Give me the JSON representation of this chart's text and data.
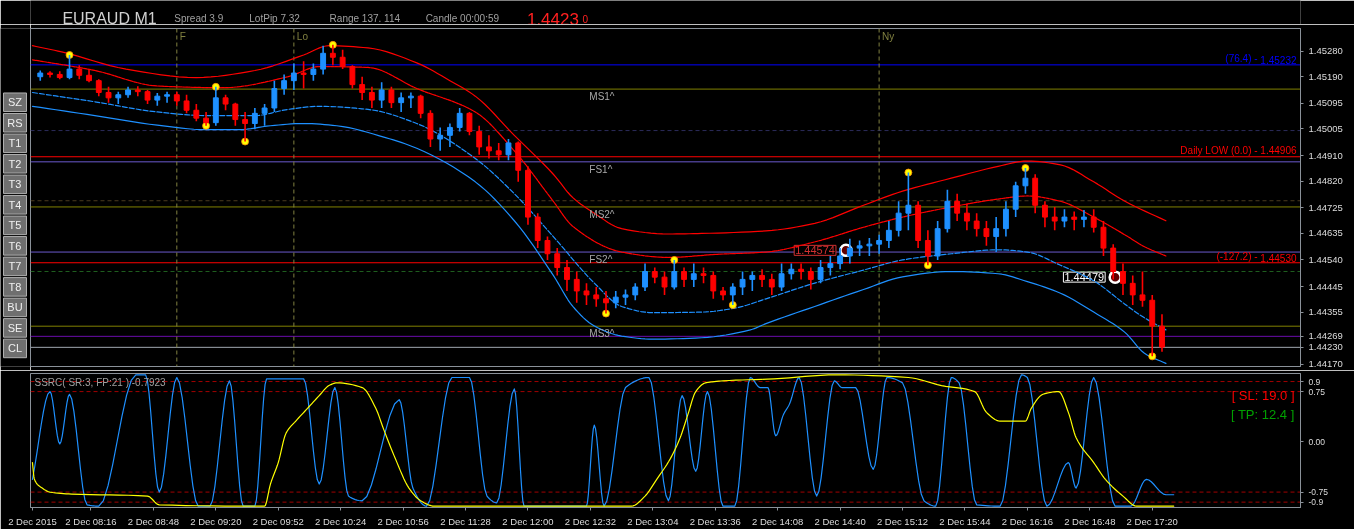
{
  "chart_data": [
    {
      "type": "candlestick",
      "title": "EURAUD M1",
      "tick_labels": "y",
      "annotations": [
        "Spread 3.9",
        "LotPip 7.32",
        "Range 137. 114",
        "Candle 00:00:59",
        "1.4423",
        "0",
        {
          "text": "1.44574",
          "x": "2015-12-02T14:43",
          "y": 1.44574
        },
        {
          "text": "1.44479",
          "x": "2015-12-02T17:01",
          "y": 1.44479
        },
        {
          "text": "(76.4) -",
          "x": "2015-12-02T18:14",
          "y": 1.45232
        },
        {
          "text": "(-127.2) -",
          "x": "2015-12-02T18:14",
          "y": 1.4453
        }
      ],
      "xlim": [
        "2015-12-02T07:45",
        "2015-12-02T18:36"
      ],
      "ylim": [
        1.44162,
        1.45361
      ],
      "yticks": [
        {
          "value": 1.4528,
          "label": "1.45280"
        },
        {
          "value": 1.4519,
          "label": "1.45190"
        },
        1.45095,
        1.45005,
        {
          "value": 1.4491,
          "label": "1.44910"
        },
        {
          "value": 1.4482,
          "label": "1.44820"
        },
        1.44725,
        1.44635,
        {
          "value": 1.4454,
          "label": "1.44540"
        },
        1.44445,
        1.44355,
        1.44269,
        {
          "value": 1.4423,
          "label": "1.44230"
        },
        {
          "value": 1.4417,
          "label": "1.44170"
        }
      ],
      "x": [
        "2015-12-02T07:50",
        "2015-12-02T07:55",
        "2015-12-02T08:00",
        "2015-12-02T08:05",
        "2015-12-02T08:10",
        "2015-12-02T08:15",
        "2015-12-02T08:20",
        "2015-12-02T08:25",
        "2015-12-02T08:30",
        "2015-12-02T08:35",
        "2015-12-02T08:40",
        "2015-12-02T08:45",
        "2015-12-02T08:50",
        "2015-12-02T08:55",
        "2015-12-02T09:00",
        "2015-12-02T09:05",
        "2015-12-02T09:10",
        "2015-12-02T09:15",
        "2015-12-02T09:20",
        "2015-12-02T09:25",
        "2015-12-02T09:30",
        "2015-12-02T09:35",
        "2015-12-02T09:40",
        "2015-12-02T09:45",
        "2015-12-02T09:50",
        "2015-12-02T09:55",
        "2015-12-02T10:00",
        "2015-12-02T10:05",
        "2015-12-02T10:10",
        "2015-12-02T10:15",
        "2015-12-02T10:20",
        "2015-12-02T10:25",
        "2015-12-02T10:30",
        "2015-12-02T10:35",
        "2015-12-02T10:40",
        "2015-12-02T10:45",
        "2015-12-02T10:50",
        "2015-12-02T10:55",
        "2015-12-02T11:00",
        "2015-12-02T11:05",
        "2015-12-02T11:10",
        "2015-12-02T11:15",
        "2015-12-02T11:20",
        "2015-12-02T11:25",
        "2015-12-02T11:30",
        "2015-12-02T11:35",
        "2015-12-02T11:40",
        "2015-12-02T11:45",
        "2015-12-02T11:50",
        "2015-12-02T11:55",
        "2015-12-02T12:00",
        "2015-12-02T12:05",
        "2015-12-02T12:10",
        "2015-12-02T12:15",
        "2015-12-02T12:20",
        "2015-12-02T12:25",
        "2015-12-02T12:30",
        "2015-12-02T12:35",
        "2015-12-02T12:40",
        "2015-12-02T12:45",
        "2015-12-02T12:50",
        "2015-12-02T12:55",
        "2015-12-02T13:00",
        "2015-12-02T13:05",
        "2015-12-02T13:10",
        "2015-12-02T13:15",
        "2015-12-02T13:20",
        "2015-12-02T13:25",
        "2015-12-02T13:30",
        "2015-12-02T13:35",
        "2015-12-02T13:40",
        "2015-12-02T13:45",
        "2015-12-02T13:50",
        "2015-12-02T13:55",
        "2015-12-02T14:00",
        "2015-12-02T14:05",
        "2015-12-02T14:10",
        "2015-12-02T14:15",
        "2015-12-02T14:20",
        "2015-12-02T14:25",
        "2015-12-02T14:30",
        "2015-12-02T14:35",
        "2015-12-02T14:40",
        "2015-12-02T14:45",
        "2015-12-02T14:50",
        "2015-12-02T14:55",
        "2015-12-02T15:00",
        "2015-12-02T15:05",
        "2015-12-02T15:10",
        "2015-12-02T15:15",
        "2015-12-02T15:20",
        "2015-12-02T15:25",
        "2015-12-02T15:30",
        "2015-12-02T15:35",
        "2015-12-02T15:40",
        "2015-12-02T15:45",
        "2015-12-02T15:50",
        "2015-12-02T15:55",
        "2015-12-02T16:00",
        "2015-12-02T16:05",
        "2015-12-02T16:10",
        "2015-12-02T16:15",
        "2015-12-02T16:20",
        "2015-12-02T16:25",
        "2015-12-02T16:30",
        "2015-12-02T16:35",
        "2015-12-02T16:40",
        "2015-12-02T16:45",
        "2015-12-02T16:50",
        "2015-12-02T16:55",
        "2015-12-02T17:00",
        "2015-12-02T17:05",
        "2015-12-02T17:10",
        "2015-12-02T17:15",
        "2015-12-02T17:20",
        "2015-12-02T17:25"
      ],
      "ohlc": [
        [
          1.4519,
          1.45212,
          1.45176,
          1.45203
        ],
        [
          1.45203,
          1.45209,
          1.45187,
          1.45198
        ],
        [
          1.45198,
          1.45209,
          1.45181,
          1.45187
        ],
        [
          1.45187,
          1.45267,
          1.45181,
          1.45217
        ],
        [
          1.45217,
          1.45231,
          1.45181,
          1.45195
        ],
        [
          1.45195,
          1.45215,
          1.4517,
          1.45176
        ],
        [
          1.45176,
          1.45181,
          1.45121,
          1.45134
        ],
        [
          1.45134,
          1.45154,
          1.45098,
          1.45115
        ],
        [
          1.45115,
          1.45137,
          1.45093,
          1.45126
        ],
        [
          1.45126,
          1.45154,
          1.45115,
          1.45143
        ],
        [
          1.45143,
          1.45156,
          1.45121,
          1.45137
        ],
        [
          1.45137,
          1.45143,
          1.45093,
          1.45107
        ],
        [
          1.45107,
          1.45132,
          1.45087,
          1.45121
        ],
        [
          1.45121,
          1.45137,
          1.45098,
          1.45126
        ],
        [
          1.45126,
          1.45137,
          1.45087,
          1.45104
        ],
        [
          1.45104,
          1.45126,
          1.4506,
          1.45071
        ],
        [
          1.45071,
          1.45093,
          1.45032,
          1.45043
        ],
        [
          1.45043,
          1.45065,
          1.45016,
          1.45027
        ],
        [
          1.45027,
          1.45154,
          1.45016,
          1.45115
        ],
        [
          1.45115,
          1.45126,
          1.45071,
          1.45093
        ],
        [
          1.45093,
          1.45098,
          1.45016,
          1.45038
        ],
        [
          1.45038,
          1.45065,
          1.4496,
          1.45024
        ],
        [
          1.45024,
          1.45079,
          1.45004,
          1.4506
        ],
        [
          1.4506,
          1.45093,
          1.45016,
          1.45079
        ],
        [
          1.45079,
          1.45176,
          1.45065,
          1.45148
        ],
        [
          1.45148,
          1.45198,
          1.45126,
          1.45176
        ],
        [
          1.45176,
          1.45237,
          1.45143,
          1.45203
        ],
        [
          1.45203,
          1.45245,
          1.45148,
          1.45198
        ],
        [
          1.45198,
          1.45237,
          1.45176,
          1.45217
        ],
        [
          1.45217,
          1.453,
          1.45198,
          1.45273
        ],
        [
          1.45273,
          1.45303,
          1.45231,
          1.45259
        ],
        [
          1.45259,
          1.45286,
          1.45217,
          1.45226
        ],
        [
          1.45226,
          1.45231,
          1.45148,
          1.45162
        ],
        [
          1.45162,
          1.4519,
          1.45107,
          1.45134
        ],
        [
          1.45134,
          1.45154,
          1.45079,
          1.45107
        ],
        [
          1.45107,
          1.4517,
          1.45079,
          1.45143
        ],
        [
          1.45143,
          1.45154,
          1.45079,
          1.45098
        ],
        [
          1.45098,
          1.45134,
          1.45065,
          1.45115
        ],
        [
          1.45115,
          1.45134,
          1.45079,
          1.45121
        ],
        [
          1.45121,
          1.45126,
          1.45043,
          1.4506
        ],
        [
          1.4506,
          1.45071,
          1.44941,
          1.44969
        ],
        [
          1.44969,
          1.4501,
          1.44927,
          1.44982
        ],
        [
          1.44982,
          1.45024,
          1.44941,
          1.4501
        ],
        [
          1.4501,
          1.45079,
          1.44996,
          1.4506
        ],
        [
          1.4506,
          1.45065,
          1.44982,
          1.44996
        ],
        [
          1.44996,
          1.45016,
          1.44913,
          1.44941
        ],
        [
          1.44941,
          1.44982,
          1.449,
          1.44927
        ],
        [
          1.44927,
          1.44955,
          1.44894,
          1.44913
        ],
        [
          1.44913,
          1.44969,
          1.44894,
          1.44955
        ],
        [
          1.44955,
          1.4496,
          1.44817,
          1.44858
        ],
        [
          1.44858,
          1.44872,
          1.44665,
          1.44692
        ],
        [
          1.44692,
          1.44706,
          1.44582,
          1.44609
        ],
        [
          1.44609,
          1.44623,
          1.4454,
          1.44562
        ],
        [
          1.44562,
          1.44582,
          1.44485,
          1.44513
        ],
        [
          1.44513,
          1.4454,
          1.4443,
          1.44471
        ],
        [
          1.44471,
          1.44499,
          1.44388,
          1.4443
        ],
        [
          1.4443,
          1.44457,
          1.4438,
          1.44416
        ],
        [
          1.44416,
          1.44444,
          1.44374,
          1.44402
        ],
        [
          1.44402,
          1.4443,
          1.4435,
          1.44388
        ],
        [
          1.44388,
          1.4443,
          1.44369,
          1.44408
        ],
        [
          1.44408,
          1.44435,
          1.4438,
          1.44416
        ],
        [
          1.44416,
          1.44457,
          1.44397,
          1.44444
        ],
        [
          1.44444,
          1.44527,
          1.4443,
          1.44499
        ],
        [
          1.44499,
          1.44513,
          1.44457,
          1.44479
        ],
        [
          1.44479,
          1.44499,
          1.44416,
          1.44444
        ],
        [
          1.44444,
          1.4454,
          1.44435,
          1.44499
        ],
        [
          1.44499,
          1.44513,
          1.44444,
          1.44471
        ],
        [
          1.44471,
          1.44527,
          1.44444,
          1.44491
        ],
        [
          1.44491,
          1.44513,
          1.44457,
          1.44485
        ],
        [
          1.44485,
          1.44499,
          1.44402,
          1.4443
        ],
        [
          1.4443,
          1.44444,
          1.44397,
          1.44416
        ],
        [
          1.44416,
          1.44457,
          1.4438,
          1.44444
        ],
        [
          1.44444,
          1.44499,
          1.44416,
          1.44471
        ],
        [
          1.44471,
          1.44499,
          1.4443,
          1.44485
        ],
        [
          1.44485,
          1.44507,
          1.44444,
          1.44471
        ],
        [
          1.44471,
          1.44491,
          1.44416,
          1.44444
        ],
        [
          1.44444,
          1.44527,
          1.4443,
          1.44491
        ],
        [
          1.44491,
          1.44527,
          1.44471,
          1.44507
        ],
        [
          1.44507,
          1.44527,
          1.44471,
          1.44499
        ],
        [
          1.44499,
          1.44513,
          1.44435,
          1.44471
        ],
        [
          1.44471,
          1.4454,
          1.44457,
          1.44513
        ],
        [
          1.44513,
          1.44554,
          1.44485,
          1.44527
        ],
        [
          1.44527,
          1.44582,
          1.44507,
          1.44554
        ],
        [
          1.44554,
          1.44615,
          1.44527,
          1.44582
        ],
        [
          1.44582,
          1.44609,
          1.44554,
          1.4459
        ],
        [
          1.4459,
          1.44618,
          1.44554,
          1.44596
        ],
        [
          1.44596,
          1.44629,
          1.44562,
          1.44609
        ],
        [
          1.44609,
          1.44678,
          1.44582,
          1.44645
        ],
        [
          1.44645,
          1.44748,
          1.44623,
          1.44706
        ],
        [
          1.44706,
          1.4485,
          1.44645,
          1.44734
        ],
        [
          1.44734,
          1.44748,
          1.44582,
          1.44609
        ],
        [
          1.44609,
          1.44645,
          1.44521,
          1.44554
        ],
        [
          1.44554,
          1.44678,
          1.4454,
          1.44651
        ],
        [
          1.44651,
          1.44789,
          1.44637,
          1.44748
        ],
        [
          1.44748,
          1.44775,
          1.44678,
          1.44706
        ],
        [
          1.44706,
          1.44739,
          1.44645,
          1.44678
        ],
        [
          1.44678,
          1.44706,
          1.44623,
          1.44651
        ],
        [
          1.44651,
          1.44678,
          1.4459,
          1.44623
        ],
        [
          1.44623,
          1.44692,
          1.44568,
          1.44651
        ],
        [
          1.44651,
          1.44748,
          1.44623,
          1.4472
        ],
        [
          1.4472,
          1.44817,
          1.44692,
          1.44803
        ],
        [
          1.44803,
          1.44866,
          1.44775,
          1.4483
        ],
        [
          1.4483,
          1.44844,
          1.44706,
          1.44734
        ],
        [
          1.44734,
          1.44748,
          1.44656,
          1.44692
        ],
        [
          1.44692,
          1.44728,
          1.44645,
          1.44678
        ],
        [
          1.44678,
          1.4472,
          1.44656,
          1.44692
        ],
        [
          1.44692,
          1.44712,
          1.44645,
          1.44684
        ],
        [
          1.44684,
          1.44717,
          1.44656,
          1.44692
        ],
        [
          1.44692,
          1.4472,
          1.44637,
          1.44656
        ],
        [
          1.44656,
          1.44678,
          1.44554,
          1.44582
        ],
        [
          1.44582,
          1.44596,
          1.44471,
          1.44499
        ],
        [
          1.44499,
          1.44527,
          1.44416,
          1.44457
        ],
        [
          1.44457,
          1.44485,
          1.4438,
          1.44416
        ],
        [
          1.44416,
          1.44499,
          1.44374,
          1.44397
        ],
        [
          1.44397,
          1.44416,
          1.44198,
          1.44305
        ],
        [
          1.44305,
          1.44347,
          1.44214,
          1.44231
        ]
      ],
      "colors": [
        "#1e90ff",
        "#ff0000",
        "#ff0000",
        "#1e90ff",
        "#ff0000",
        "#ff0000",
        "#ff0000",
        "#ff0000",
        "#1e90ff",
        "#1e90ff",
        "#ff0000",
        "#ff0000",
        "#1e90ff",
        "#1e90ff",
        "#ff0000",
        "#ff0000",
        "#ff0000",
        "#ff0000",
        "#1e90ff",
        "#ff0000",
        "#ff0000",
        "#ff0000",
        "#1e90ff",
        "#1e90ff",
        "#1e90ff",
        "#1e90ff",
        "#1e90ff",
        "#ff0000",
        "#1e90ff",
        "#1e90ff",
        "#ff0000",
        "#ff0000",
        "#ff0000",
        "#ff0000",
        "#ff0000",
        "#1e90ff",
        "#ff0000",
        "#1e90ff",
        "#1e90ff",
        "#ff0000",
        "#ff0000",
        "#1e90ff",
        "#1e90ff",
        "#1e90ff",
        "#ff0000",
        "#ff0000",
        "#ff0000",
        "#ff0000",
        "#1e90ff",
        "#ff0000",
        "#ff0000",
        "#ff0000",
        "#ff0000",
        "#ff0000",
        "#ff0000",
        "#ff0000",
        "#ff0000",
        "#ff0000",
        "#ff0000",
        "#1e90ff",
        "#1e90ff",
        "#1e90ff",
        "#1e90ff",
        "#ff0000",
        "#ff0000",
        "#1e90ff",
        "#ff0000",
        "#1e90ff",
        "#ff0000",
        "#ff0000",
        "#ff0000",
        "#1e90ff",
        "#1e90ff",
        "#1e90ff",
        "#ff0000",
        "#ff0000",
        "#1e90ff",
        "#1e90ff",
        "#ff0000",
        "#ff0000",
        "#1e90ff",
        "#1e90ff",
        "#1e90ff",
        "#1e90ff",
        "#1e90ff",
        "#1e90ff",
        "#1e90ff",
        "#1e90ff",
        "#1e90ff",
        "#1e90ff",
        "#ff0000",
        "#ff0000",
        "#1e90ff",
        "#1e90ff",
        "#ff0000",
        "#ff0000",
        "#ff0000",
        "#ff0000",
        "#1e90ff",
        "#1e90ff",
        "#1e90ff",
        "#1e90ff",
        "#ff0000",
        "#ff0000",
        "#ff0000",
        "#1e90ff",
        "#ff0000",
        "#1e90ff",
        "#ff0000",
        "#ff0000",
        "#ff0000",
        "#ff0000",
        "#ff0000",
        "#ff0000",
        "#ff0000",
        "#ff0000"
      ],
      "series": [
        {
          "type": "line",
          "color": "#ff0000",
          "x": [
            "2015-12-02T07:46",
            "2015-12-02T08:01",
            "2015-12-02T08:34",
            "2015-12-02T09:10",
            "2015-12-02T09:40",
            "2015-12-02T10:05",
            "2015-12-02T10:18",
            "2015-12-02T10:38",
            "2015-12-02T11:03",
            "2015-12-02T11:20",
            "2015-12-02T11:33",
            "2015-12-02T11:53",
            "2015-12-02T12:13",
            "2015-12-02T12:23",
            "2015-12-02T12:34",
            "2015-12-02T12:48",
            "2015-12-02T13:12",
            "2015-12-02T13:29",
            "2015-12-02T14:02",
            "2015-12-02T14:27",
            "2015-12-02T14:52",
            "2015-12-02T15:12",
            "2015-12-02T15:37",
            "2015-12-02T16:01",
            "2015-12-02T16:16",
            "2015-12-02T16:33",
            "2015-12-02T16:50",
            "2015-12-02T17:06",
            "2015-12-02T17:27"
          ],
          "values": [
            1.453,
            1.45278,
            1.45217,
            1.45187,
            1.45212,
            1.45267,
            1.453,
            1.45292,
            1.45239,
            1.45176,
            1.45121,
            1.44982,
            1.44844,
            1.44761,
            1.44706,
            1.44651,
            1.44632,
            1.44634,
            1.44643,
            1.4467,
            1.44734,
            1.44784,
            1.4483,
            1.44872,
            1.44891,
            1.44877,
            1.44817,
            1.44748,
            1.44679
          ]
        },
        {
          "type": "line",
          "color": "#ff0000",
          "line_style": "dashed",
          "x": [
            "2015-12-02T07:46",
            "2015-12-02T08:18",
            "2015-12-02T08:50",
            "2015-12-02T09:24",
            "2015-12-02T09:57",
            "2015-12-02T10:13",
            "2015-12-02T10:38",
            "2015-12-02T11:03",
            "2015-12-02T11:33",
            "2015-12-02T11:53",
            "2015-12-02T12:13",
            "2015-12-02T12:23",
            "2015-12-02T12:48",
            "2015-12-02T13:12",
            "2015-12-02T13:37",
            "2015-12-02T14:02",
            "2015-12-02T14:27",
            "2015-12-02T14:52",
            "2015-12-02T15:12",
            "2015-12-02T15:37",
            "2015-12-02T16:01",
            "2015-12-02T16:16",
            "2015-12-02T16:33",
            "2015-12-02T16:50",
            "2015-12-02T17:06",
            "2015-12-02T17:16",
            "2015-12-02T17:27"
          ],
          "values": [
            1.4525,
            1.45212,
            1.45157,
            1.45151,
            1.4519,
            1.45226,
            1.45223,
            1.45148,
            1.45065,
            1.44927,
            1.44748,
            1.44659,
            1.44568,
            1.44549,
            1.4456,
            1.44568,
            1.44604,
            1.44656,
            1.44692,
            1.44728,
            1.44756,
            1.44767,
            1.44748,
            1.44692,
            1.44629,
            1.44587,
            1.44554
          ]
        },
        {
          "type": "line",
          "color": "#1e90ff",
          "line_style": "dashed",
          "x": [
            "2015-12-02T07:46",
            "2015-12-02T08:18",
            "2015-12-02T08:50",
            "2015-12-02T09:15",
            "2015-12-02T09:40",
            "2015-12-02T09:57",
            "2015-12-02T10:13",
            "2015-12-02T10:38",
            "2015-12-02T11:03",
            "2015-12-02T11:33",
            "2015-12-02T11:53",
            "2015-12-02T12:13",
            "2015-12-02T12:34",
            "2015-12-02T12:48",
            "2015-12-02T13:04",
            "2015-12-02T13:29",
            "2015-12-02T13:46",
            "2015-12-02T14:02",
            "2015-12-02T14:27",
            "2015-12-02T14:52",
            "2015-12-02T15:12",
            "2015-12-02T15:37",
            "2015-12-02T16:01",
            "2015-12-02T16:16",
            "2015-12-02T16:33",
            "2015-12-02T16:50",
            "2015-12-02T17:06",
            "2015-12-02T17:15",
            "2015-12-02T17:27"
          ],
          "values": [
            1.45134,
            1.45101,
            1.45065,
            1.45052,
            1.45052,
            1.45074,
            1.45085,
            1.45074,
            1.45024,
            1.449,
            1.44775,
            1.44623,
            1.44458,
            1.44375,
            1.44353,
            1.44355,
            1.44369,
            1.44402,
            1.44458,
            1.44504,
            1.4454,
            1.44562,
            1.44576,
            1.44568,
            1.44521,
            1.44466,
            1.44383,
            1.44339,
            1.44292
          ]
        },
        {
          "type": "line",
          "color": "#1e90ff",
          "x": [
            "2015-12-02T07:46",
            "2015-12-02T08:18",
            "2015-12-02T08:50",
            "2015-12-02T09:15",
            "2015-12-02T09:32",
            "2015-12-02T09:48",
            "2015-12-02T10:05",
            "2015-12-02T10:22",
            "2015-12-02T10:47",
            "2015-12-02T11:03",
            "2015-12-02T11:33",
            "2015-12-02T11:53",
            "2015-12-02T12:13",
            "2015-12-02T12:23",
            "2015-12-02T12:34",
            "2015-12-02T12:48",
            "2015-12-02T13:04",
            "2015-12-02T13:29",
            "2015-12-02T13:54",
            "2015-12-02T14:02",
            "2015-12-02T14:27",
            "2015-12-02T14:52",
            "2015-12-02T15:12",
            "2015-12-02T15:37",
            "2015-12-02T16:01",
            "2015-12-02T16:16",
            "2015-12-02T16:33",
            "2015-12-02T16:50",
            "2015-12-02T17:06",
            "2015-12-02T17:16",
            "2015-12-02T17:27"
          ],
          "values": [
            1.45085,
            1.45052,
            1.45018,
            1.45002,
            1.45002,
            1.45016,
            1.45024,
            1.45016,
            1.44974,
            1.44936,
            1.44817,
            1.44679,
            1.44485,
            1.44375,
            1.44306,
            1.4427,
            1.44259,
            1.44264,
            1.44292,
            1.44314,
            1.44375,
            1.44435,
            1.4448,
            1.44499,
            1.44491,
            1.44463,
            1.44422,
            1.44355,
            1.44283,
            1.44209,
            1.44173
          ]
        },
        {
          "type": "scatter",
          "color": "#ffff00",
          "marker": "circle",
          "x": [
            "2015-12-02T08:05",
            "2015-12-02T09:15",
            "2015-12-02T09:20",
            "2015-12-02T09:35",
            "2015-12-02T10:20",
            "2015-12-02T12:40",
            "2015-12-02T13:15",
            "2015-12-02T13:45",
            "2015-12-02T15:15",
            "2015-12-02T15:25",
            "2015-12-02T16:15",
            "2015-12-02T17:20"
          ],
          "values": [
            1.45267,
            1.45016,
            1.45154,
            1.4496,
            1.45303,
            1.4435,
            1.4454,
            1.4438,
            1.4485,
            1.44521,
            1.44866,
            1.44198
          ]
        }
      ],
      "ref_lines": [
        {
          "axis": "y",
          "value": 1.45232,
          "label": "1.45232",
          "color": "#0000ff"
        },
        {
          "axis": "y",
          "value": 1.45146,
          "label": "MS1^",
          "color": "#808000"
        },
        {
          "axis": "y",
          "value": 1.44999,
          "color": "#2a2a5a",
          "line_style": "dashed"
        },
        {
          "axis": "y",
          "value": 1.44906,
          "label": "Daily LOW (0.0) - 1.44906",
          "color": "#ff0000"
        },
        {
          "axis": "y",
          "value": 1.44888,
          "label": "FS1^",
          "color": "#6a5acd"
        },
        {
          "axis": "y",
          "value": 1.4475,
          "color": "#4a3a20",
          "line_style": "dashed"
        },
        {
          "axis": "y",
          "value": 1.44728,
          "label": "MS2^",
          "color": "#808000"
        },
        {
          "axis": "y",
          "value": 1.44568,
          "label": "FS2^",
          "color": "#6a5acd"
        },
        {
          "axis": "y",
          "value": 1.4453,
          "label": "1.44530",
          "color": "#ff0000"
        },
        {
          "axis": "y",
          "value": 1.44499,
          "color": "#1f5f1f",
          "line_style": "dashed"
        },
        {
          "axis": "y",
          "value": 1.44305,
          "label": "MS3^",
          "color": "#808000"
        },
        {
          "axis": "y",
          "value": 1.44269,
          "color": "#6a0dad"
        },
        {
          "axis": "y",
          "value": 1.4423,
          "color": "#a0a8b0"
        },
        {
          "axis": "x",
          "value": "2015-12-02T09:00",
          "label": "F",
          "color": "#808040",
          "line_style": "dashed"
        },
        {
          "axis": "x",
          "value": "2015-12-02T10:00",
          "label": "Lo",
          "color": "#808040",
          "line_style": "dashed"
        },
        {
          "axis": "x",
          "value": "2015-12-02T15:00",
          "label": "Ny",
          "color": "#808040",
          "line_style": "dashed"
        }
      ]
    },
    {
      "type": "line",
      "title": "SSRC( SR:3, FP:21 ) -0.7923",
      "annotations": [
        "[ SL: 19.0 ]",
        "[ TP: 12.4 ]"
      ],
      "xlim": [
        "2015-12-02T07:45",
        "2015-12-02T18:36"
      ],
      "ylim": [
        -0.98,
        1.02
      ],
      "xticks": [
        {
          "value": "2015-12-02T07:46",
          "label": "2 Dec 2015"
        },
        {
          "value": "2015-12-02T08:16",
          "label": "2 Dec 08:16"
        },
        {
          "value": "2015-12-02T08:48",
          "label": "2 Dec 08:48"
        },
        {
          "value": "2015-12-02T09:20",
          "label": "2 Dec 09:20"
        },
        {
          "value": "2015-12-02T09:52",
          "label": "2 Dec 09:52"
        },
        {
          "value": "2015-12-02T10:24",
          "label": "2 Dec 10:24"
        },
        {
          "value": "2015-12-02T10:56",
          "label": "2 Dec 10:56"
        },
        {
          "value": "2015-12-02T11:28",
          "label": "2 Dec 11:28"
        },
        {
          "value": "2015-12-02T12:00",
          "label": "2 Dec 12:00"
        },
        {
          "value": "2015-12-02T12:32",
          "label": "2 Dec 12:32"
        },
        {
          "value": "2015-12-02T13:04",
          "label": "2 Dec 13:04"
        },
        {
          "value": "2015-12-02T13:36",
          "label": "2 Dec 13:36"
        },
        {
          "value": "2015-12-02T14:08",
          "label": "2 Dec 14:08"
        },
        {
          "value": "2015-12-02T14:40",
          "label": "2 Dec 14:40"
        },
        {
          "value": "2015-12-02T15:12",
          "label": "2 Dec 15:12"
        },
        {
          "value": "2015-12-02T15:44",
          "label": "2 Dec 15:44"
        },
        {
          "value": "2015-12-02T16:16",
          "label": "2 Dec 16:16"
        },
        {
          "value": "2015-12-02T16:48",
          "label": "2 Dec 16:48"
        },
        {
          "value": "2015-12-02T17:20",
          "label": "2 Dec 17:20"
        }
      ],
      "yticks": [
        0.9,
        0.75,
        {
          "value": 0,
          "label": "0.00"
        },
        -0.75,
        -0.9
      ],
      "ref_lines": [
        {
          "axis": "y",
          "value": 0.9,
          "color": "#a00000",
          "line_style": "dashed"
        },
        {
          "axis": "y",
          "value": 0.75,
          "color": "#a00000",
          "line_style": "dashed"
        },
        {
          "axis": "y",
          "value": -0.75,
          "color": "#a00000",
          "line_style": "dashed"
        },
        {
          "axis": "y",
          "value": -0.9,
          "color": "#a00000",
          "line_style": "dashed"
        }
      ],
      "series": [
        {
          "color": "#1e90ff",
          "x": [
            "2015-12-02T07:46",
            "2015-12-02T07:55",
            "2015-12-02T08:00",
            "2015-12-02T08:05",
            "2015-12-02T08:14",
            "2015-12-02T08:20",
            "2015-12-02T08:39",
            "2015-12-02T08:44",
            "2015-12-02T08:51",
            "2015-12-02T09:00",
            "2015-12-02T09:11",
            "2015-12-02T09:17",
            "2015-12-02T09:27",
            "2015-12-02T09:34",
            "2015-12-02T09:40",
            "2015-12-02T09:46",
            "2015-12-02T10:05",
            "2015-12-02T10:13",
            "2015-12-02T10:21",
            "2015-12-02T10:28",
            "2015-12-02T10:35",
            "2015-12-02T10:54",
            "2015-12-02T11:01",
            "2015-12-02T11:08",
            "2015-12-02T11:21",
            "2015-12-02T11:30",
            "2015-12-02T11:39",
            "2015-12-02T11:44",
            "2015-12-02T11:53",
            "2015-12-02T11:58",
            "2015-12-02T12:30",
            "2015-12-02T12:34",
            "2015-12-02T12:39",
            "2015-12-02T12:50",
            "2015-12-02T13:02",
            "2015-12-02T13:12",
            "2015-12-02T13:19",
            "2015-12-02T13:26",
            "2015-12-02T13:32",
            "2015-12-02T13:40",
            "2015-12-02T13:46",
            "2015-12-02T13:54",
            "2015-12-02T13:59",
            "2015-12-02T14:03",
            "2015-12-02T14:07",
            "2015-12-02T14:11",
            "2015-12-02T14:14",
            "2015-12-02T14:19",
            "2015-12-02T14:28",
            "2015-12-02T14:37",
            "2015-12-02T14:41",
            "2015-12-02T14:48",
            "2015-12-02T14:57",
            "2015-12-02T15:04",
            "2015-12-02T15:12",
            "2015-12-02T15:23",
            "2015-12-02T15:29",
            "2015-12-02T15:37",
            "2015-12-02T15:41",
            "2015-12-02T15:50",
            "2015-12-02T16:02",
            "2015-12-02T16:13",
            "2015-12-02T16:16",
            "2015-12-02T16:26",
            "2015-12-02T16:37",
            "2015-12-02T16:41",
            "2015-12-02T16:50",
            "2015-12-02T17:01",
            "2015-12-02T17:09",
            "2015-12-02T17:17",
            "2015-12-02T17:27",
            "2015-12-02T17:31"
          ],
          "values": [
            -0.56,
            0.75,
            -0.03,
            0.71,
            -0.94,
            -0.96,
            1.0,
            1.0,
            -0.75,
            0.96,
            -0.96,
            -0.96,
            0.91,
            -0.96,
            -0.96,
            0.94,
            0.94,
            -0.63,
            0.81,
            -0.81,
            -0.88,
            0.63,
            -0.69,
            -0.96,
            0.96,
            0.96,
            -0.81,
            -0.91,
            0.79,
            -0.96,
            -0.96,
            0.25,
            -0.96,
            0.81,
            0.96,
            -0.88,
            0.69,
            -0.44,
            0.75,
            -0.96,
            -0.96,
            0.96,
            0.81,
            0.81,
            0.09,
            0.41,
            0.56,
            0.96,
            -0.81,
            0.91,
            0.81,
            0.81,
            -0.41,
            0.96,
            0.88,
            -0.88,
            -0.96,
            0.96,
            0.88,
            -0.94,
            -0.96,
            1.0,
            0.96,
            -0.96,
            -0.31,
            -0.69,
            0.96,
            -0.96,
            -0.96,
            -0.56,
            -0.79,
            -0.79
          ]
        },
        {
          "color": "#ffff00",
          "x": [
            "2015-12-02T07:46",
            "2015-12-02T07:47",
            "2015-12-02T07:51",
            "2015-12-02T07:55",
            "2015-12-02T08:06",
            "2015-12-02T08:45",
            "2015-12-02T08:51",
            "2015-12-02T09:45",
            "2015-12-02T09:48",
            "2015-12-02T09:52",
            "2015-12-02T09:56",
            "2015-12-02T10:01",
            "2015-12-02T10:07",
            "2015-12-02T10:13",
            "2015-12-02T10:18",
            "2015-12-02T10:22",
            "2015-12-02T10:35",
            "2015-12-02T10:42",
            "2015-12-02T10:46",
            "2015-12-02T10:52",
            "2015-12-02T10:59",
            "2015-12-02T11:05",
            "2015-12-02T11:12",
            "2015-12-02T12:53",
            "2015-12-02T13:00",
            "2015-12-02T13:06",
            "2015-12-02T13:13",
            "2015-12-02T13:18",
            "2015-12-02T13:22",
            "2015-12-02T13:26",
            "2015-12-02T13:31",
            "2015-12-02T13:40",
            "2015-12-02T14:06",
            "2015-12-02T14:38",
            "2015-12-02T15:15",
            "2015-12-02T15:32",
            "2015-12-02T15:49",
            "2015-12-02T15:55",
            "2015-12-02T16:02",
            "2015-12-02T16:15",
            "2015-12-02T16:18",
            "2015-12-02T16:24",
            "2015-12-02T16:32",
            "2015-12-02T16:37",
            "2015-12-02T16:41",
            "2015-12-02T16:50",
            "2015-12-02T16:56",
            "2015-12-02T17:05",
            "2015-12-02T17:12",
            "2015-12-02T17:31"
          ],
          "values": [
            -0.31,
            -0.56,
            -0.69,
            -0.75,
            -0.78,
            -0.81,
            -0.94,
            -0.96,
            -0.63,
            -0.31,
            0.13,
            0.31,
            0.5,
            0.69,
            0.84,
            0.88,
            0.81,
            0.5,
            0.19,
            -0.25,
            -0.69,
            -0.88,
            -0.96,
            -0.96,
            -0.81,
            -0.56,
            -0.25,
            0.06,
            0.41,
            0.75,
            0.88,
            0.91,
            0.94,
            1.0,
            0.96,
            0.84,
            0.75,
            0.44,
            0.31,
            0.31,
            0.5,
            0.71,
            0.75,
            0.44,
            0.06,
            -0.31,
            -0.56,
            -0.81,
            -0.96,
            -0.96
          ]
        }
      ]
    },
    {
      "type": "other",
      "annotations": [
        "SZ",
        "RS",
        "T1",
        "T2",
        "T3",
        "T4",
        "T5",
        "T6",
        "T7",
        "T8",
        "BU",
        "SE",
        "CL"
      ]
    }
  ]
}
